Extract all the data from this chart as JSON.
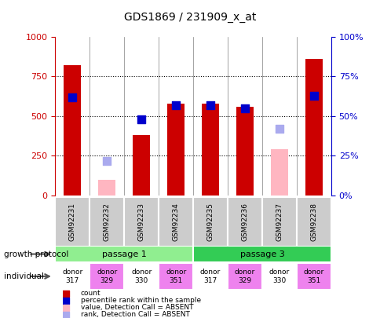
{
  "title": "GDS1869 / 231909_x_at",
  "samples": [
    "GSM92231",
    "GSM92232",
    "GSM92233",
    "GSM92234",
    "GSM92235",
    "GSM92236",
    "GSM92237",
    "GSM92238"
  ],
  "count": [
    820,
    null,
    380,
    580,
    580,
    560,
    null,
    860
  ],
  "count_absent": [
    null,
    100,
    null,
    null,
    null,
    null,
    290,
    null
  ],
  "rank": [
    620,
    null,
    480,
    570,
    570,
    550,
    null,
    630
  ],
  "rank_absent": [
    null,
    220,
    null,
    null,
    null,
    null,
    420,
    null
  ],
  "ylim": [
    0,
    1000
  ],
  "yticks": [
    0,
    250,
    500,
    750,
    1000
  ],
  "passage1_label": "passage 1",
  "passage3_label": "passage 3",
  "donors": [
    "donor\n317",
    "donor\n329",
    "donor\n330",
    "donor\n351",
    "donor\n317",
    "donor\n329",
    "donor\n330",
    "donor\n351"
  ],
  "donor_colors": [
    "white",
    "#ee82ee",
    "white",
    "#ee82ee",
    "white",
    "#ee82ee",
    "white",
    "#ee82ee"
  ],
  "bar_color_red": "#cc0000",
  "bar_color_pink": "#ffb6c1",
  "square_color_blue": "#0000cc",
  "square_color_lightblue": "#aaaaee",
  "passage1_color": "#90ee90",
  "passage3_color": "#33cc55",
  "tick_label_color_left": "#cc0000",
  "tick_label_color_right": "#0000cc",
  "square_size": 55,
  "grid_lines": [
    250,
    500,
    750
  ],
  "right_yticks": [
    0,
    25,
    50,
    75,
    100
  ],
  "right_yticklabels": [
    "0%",
    "25%",
    "50%",
    "75%",
    "100%"
  ]
}
